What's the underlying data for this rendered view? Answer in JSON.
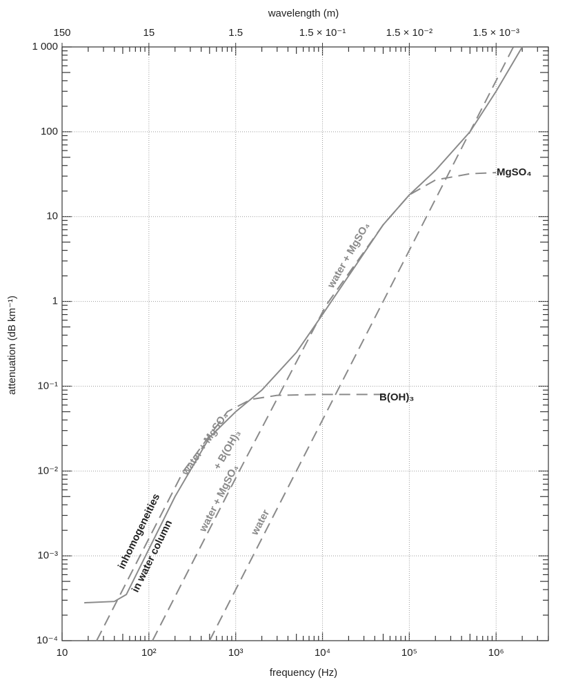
{
  "chart_data": {
    "type": "line",
    "title_top": "wavelength (m)",
    "x_label": "frequency (Hz)",
    "y_label": "attenuation (dB km⁻¹)",
    "log_x": true,
    "log_y": true,
    "grid": true,
    "minor_ticks": true,
    "xlim": [
      10,
      4000000
    ],
    "xticks": [
      10,
      {
        "value": 100,
        "label": "10²"
      },
      {
        "value": 1000,
        "label": "10³"
      },
      {
        "value": 10000,
        "label": "10⁴"
      },
      {
        "value": 100000,
        "label": "10⁵"
      },
      {
        "value": 1000000,
        "label": "10⁶"
      }
    ],
    "x2lim": [
      150,
      0.000375
    ],
    "x2ticks": [
      150,
      15,
      1.5,
      {
        "value": 0.15,
        "label": "1.5 × 10⁻¹"
      },
      {
        "value": 0.015,
        "label": "1.5 × 10⁻²"
      },
      {
        "value": 0.0015,
        "label": "1.5 × 10⁻³"
      }
    ],
    "ylim": [
      0.0001,
      1000
    ],
    "yticks": [
      {
        "value": 0.0001,
        "label": "10⁻⁴"
      },
      {
        "value": 0.001,
        "label": "10⁻³"
      },
      {
        "value": 0.01,
        "label": "10⁻²"
      },
      {
        "value": 0.1,
        "label": "10⁻¹"
      },
      1,
      10,
      100,
      {
        "value": 1000,
        "label": "1 000"
      }
    ],
    "series": [
      {
        "color": "#8a8a8a",
        "dashed": false,
        "x": [
          18,
          40,
          55,
          100,
          200,
          500,
          1000,
          2000,
          5000,
          10000,
          20000,
          50000,
          100000,
          200000,
          500000,
          1000000,
          2000000
        ],
        "values": [
          0.00028,
          0.00029,
          0.00035,
          0.0012,
          0.005,
          0.025,
          0.05,
          0.09,
          0.25,
          0.7,
          2,
          8,
          18,
          35,
          100,
          300,
          1000
        ]
      },
      {
        "name": "B(OH)₃",
        "color": "#8a8a8a",
        "dashed": true,
        "x": [
          25,
          250,
          800,
          1500,
          3000,
          10000,
          30000,
          60000
        ],
        "values": [
          0.0001,
          0.01,
          0.05,
          0.07,
          0.078,
          0.08,
          0.08,
          0.08
        ]
      },
      {
        "name": "MgSO₄",
        "color": "#8a8a8a",
        "dashed": true,
        "x": [
          110,
          1100,
          11000,
          50000,
          100000,
          200000,
          500000,
          1000000
        ],
        "values": [
          0.0001,
          0.01,
          0.9,
          8,
          18,
          27,
          32,
          33
        ]
      },
      {
        "name": "water",
        "color": "#8a8a8a",
        "dashed": true,
        "x": [
          500,
          5000,
          50000,
          500000,
          1580000
        ],
        "values": [
          0.0001,
          0.01,
          1,
          100,
          1000
        ]
      }
    ],
    "annotations": [
      "inhomogeneities",
      "in water column",
      "water + MgSO₄",
      "+ B(OH)₃",
      "water + MgSO₄",
      "water + MgSO₄"
    ]
  }
}
